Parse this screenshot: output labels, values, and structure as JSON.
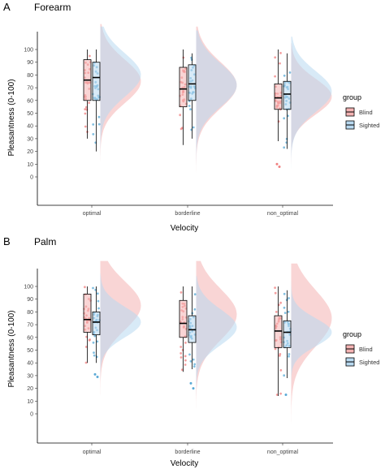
{
  "groups": [
    {
      "name": "Blind",
      "color": "#F08080",
      "fill": "#F4B3B3"
    },
    {
      "name": "Sighted",
      "color": "#5AA9D6",
      "fill": "#B8D9F0"
    }
  ],
  "legend": {
    "title": "group",
    "items": [
      "Blind",
      "Sighted"
    ]
  },
  "chart_data": [
    {
      "type": "raincloud",
      "panel": "A",
      "title": "Forearm",
      "xlabel": "Velocity",
      "ylabel": "Pleasantness (0-100)",
      "categories": [
        "optimal",
        "borderline",
        "non_optimal"
      ],
      "yticks": [
        0,
        10,
        20,
        30,
        40,
        50,
        60,
        70,
        80,
        90,
        100
      ],
      "ylim": [
        -25,
        120
      ],
      "grid": false,
      "legend_position": "right",
      "boxplots": [
        {
          "category": "optimal",
          "group": "Blind",
          "min": 30,
          "q1": 60,
          "median": 76,
          "q3": 92,
          "max": 100
        },
        {
          "category": "optimal",
          "group": "Sighted",
          "min": 20,
          "q1": 60,
          "median": 78,
          "q3": 90,
          "max": 100
        },
        {
          "category": "borderline",
          "group": "Blind",
          "min": 25,
          "q1": 55,
          "median": 69,
          "q3": 86,
          "max": 100
        },
        {
          "category": "borderline",
          "group": "Sighted",
          "min": 30,
          "q1": 60,
          "median": 73,
          "q3": 88,
          "max": 97
        },
        {
          "category": "non_optimal",
          "group": "Blind",
          "min": 28,
          "q1": 53,
          "median": 62,
          "q3": 73,
          "max": 100
        },
        {
          "category": "non_optimal",
          "group": "Sighted",
          "min": 22,
          "q1": 53,
          "median": 65,
          "q3": 75,
          "max": 97
        }
      ],
      "outliers": [
        {
          "category": "non_optimal",
          "group": "Blind",
          "values": [
            10,
            8
          ]
        }
      ],
      "densities": [
        {
          "category": "optimal",
          "group": "Blind",
          "range": [
            -5,
            120
          ],
          "mode": 75,
          "sd": 17
        },
        {
          "category": "optimal",
          "group": "Sighted",
          "range": [
            0,
            118
          ],
          "mode": 80,
          "sd": 17
        },
        {
          "category": "borderline",
          "group": "Blind",
          "range": [
            -5,
            118
          ],
          "mode": 72,
          "sd": 18
        },
        {
          "category": "borderline",
          "group": "Sighted",
          "range": [
            5,
            115
          ],
          "mode": 72,
          "sd": 17
        },
        {
          "category": "non_optimal",
          "group": "Blind",
          "range": [
            -25,
            105
          ],
          "mode": 63,
          "sd": 14
        },
        {
          "category": "non_optimal",
          "group": "Sighted",
          "range": [
            -15,
            110
          ],
          "mode": 67,
          "sd": 16
        }
      ]
    },
    {
      "type": "raincloud",
      "panel": "B",
      "title": "Palm",
      "xlabel": "Velocity",
      "ylabel": "Pleasantness (0-100)",
      "categories": [
        "optimal",
        "borderline",
        "non_optimal"
      ],
      "yticks": [
        0,
        10,
        20,
        30,
        40,
        50,
        60,
        70,
        80,
        90,
        100
      ],
      "ylim": [
        -25,
        120
      ],
      "grid": false,
      "legend_position": "right",
      "boxplots": [
        {
          "category": "optimal",
          "group": "Blind",
          "min": 40,
          "q1": 64,
          "median": 74,
          "q3": 94,
          "max": 100
        },
        {
          "category": "optimal",
          "group": "Sighted",
          "min": 40,
          "q1": 62,
          "median": 72,
          "q3": 80,
          "max": 100
        },
        {
          "category": "borderline",
          "group": "Blind",
          "min": 33,
          "q1": 60,
          "median": 71,
          "q3": 89,
          "max": 100
        },
        {
          "category": "borderline",
          "group": "Sighted",
          "min": 35,
          "q1": 56,
          "median": 66,
          "q3": 77,
          "max": 100
        },
        {
          "category": "non_optimal",
          "group": "Blind",
          "min": 14,
          "q1": 52,
          "median": 65,
          "q3": 77,
          "max": 100
        },
        {
          "category": "non_optimal",
          "group": "Sighted",
          "min": 28,
          "q1": 52,
          "median": 64,
          "q3": 73,
          "max": 97
        }
      ],
      "outliers": [
        {
          "category": "optimal",
          "group": "Sighted",
          "values": [
            31,
            29
          ]
        },
        {
          "category": "borderline",
          "group": "Sighted",
          "values": [
            24,
            20
          ]
        },
        {
          "category": "non_optimal",
          "group": "Sighted",
          "values": [
            15
          ]
        }
      ],
      "densities": [
        {
          "category": "optimal",
          "group": "Blind",
          "range": [
            10,
            120
          ],
          "mode": 85,
          "sd": 19
        },
        {
          "category": "optimal",
          "group": "Sighted",
          "range": [
            10,
            110
          ],
          "mode": 72,
          "sd": 12
        },
        {
          "category": "borderline",
          "group": "Blind",
          "range": [
            -5,
            120
          ],
          "mode": 78,
          "sd": 20
        },
        {
          "category": "borderline",
          "group": "Sighted",
          "range": [
            0,
            108
          ],
          "mode": 68,
          "sd": 14
        },
        {
          "category": "non_optimal",
          "group": "Blind",
          "range": [
            -10,
            118
          ],
          "mode": 75,
          "sd": 22
        },
        {
          "category": "non_optimal",
          "group": "Sighted",
          "range": [
            10,
            110
          ],
          "mode": 64,
          "sd": 11
        }
      ]
    }
  ]
}
